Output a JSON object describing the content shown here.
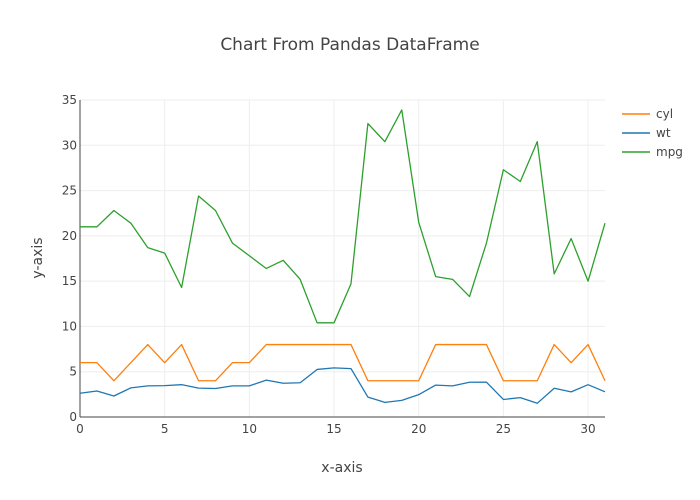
{
  "chart_data": {
    "type": "line",
    "title": "Chart From Pandas DataFrame",
    "xlabel": "x-axis",
    "ylabel": "y-axis",
    "xlim": [
      0,
      31
    ],
    "ylim": [
      0,
      35
    ],
    "grid": true,
    "legend_position": "top-right",
    "x_ticks": [
      "0",
      "5",
      "10",
      "15",
      "20",
      "25",
      "30"
    ],
    "y_ticks": [
      "0",
      "5",
      "10",
      "15",
      "20",
      "25",
      "30",
      "35"
    ],
    "x": [
      0,
      1,
      2,
      3,
      4,
      5,
      6,
      7,
      8,
      9,
      10,
      11,
      12,
      13,
      14,
      15,
      16,
      17,
      18,
      19,
      20,
      21,
      22,
      23,
      24,
      25,
      26,
      27,
      28,
      29,
      30,
      31
    ],
    "series": [
      {
        "name": "cyl",
        "color": "#ff7f0e",
        "values": [
          6,
          6,
          4,
          6,
          8,
          6,
          8,
          4,
          4,
          6,
          6,
          8,
          8,
          8,
          8,
          8,
          8,
          4,
          4,
          4,
          4,
          8,
          8,
          8,
          8,
          4,
          4,
          4,
          8,
          6,
          8,
          4
        ]
      },
      {
        "name": "wt",
        "color": "#1f77b4",
        "values": [
          2.62,
          2.875,
          2.32,
          3.215,
          3.44,
          3.46,
          3.57,
          3.19,
          3.15,
          3.44,
          3.44,
          4.07,
          3.73,
          3.78,
          5.25,
          5.424,
          5.345,
          2.2,
          1.615,
          1.835,
          2.465,
          3.52,
          3.435,
          3.84,
          3.845,
          1.935,
          2.14,
          1.513,
          3.17,
          2.77,
          3.57,
          2.78
        ]
      },
      {
        "name": "mpg",
        "color": "#2ca02c",
        "values": [
          21,
          21,
          22.8,
          21.4,
          18.7,
          18.1,
          14.3,
          24.4,
          22.8,
          19.2,
          17.8,
          16.4,
          17.3,
          15.2,
          10.4,
          10.4,
          14.7,
          32.4,
          30.4,
          33.9,
          21.5,
          15.5,
          15.2,
          13.3,
          19.2,
          27.3,
          26,
          30.4,
          15.8,
          19.7,
          15,
          21.4
        ]
      }
    ]
  }
}
